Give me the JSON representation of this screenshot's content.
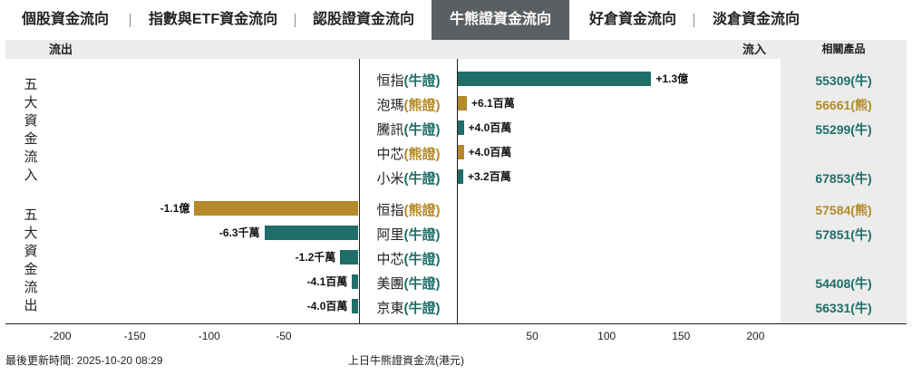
{
  "tabs": [
    {
      "label": "個股資金流向",
      "active": false
    },
    {
      "label": "指數與ETF資金流向",
      "active": false
    },
    {
      "label": "認股證資金流向",
      "active": false
    },
    {
      "label": "牛熊證資金流向",
      "active": true
    },
    {
      "label": "好倉資金流向",
      "active": false
    },
    {
      "label": "淡倉資金流向",
      "active": false
    }
  ],
  "header": {
    "outflow": "流出",
    "inflow": "流入",
    "related": "相關產品"
  },
  "groups": {
    "inflow": "五大資金流入",
    "outflow": "五大資金流出"
  },
  "colors": {
    "bull": "#1f6e69",
    "bear": "#b48a2a"
  },
  "chart_data": {
    "type": "bar",
    "orientation": "horizontal",
    "xlabel": "上日牛熊證資金流(港元)",
    "xticks": [
      -200,
      -150,
      -100,
      -50,
      50,
      100,
      150,
      200
    ],
    "units": "百萬港元",
    "rows": [
      {
        "underlying": "恒指",
        "kind": "(牛證)",
        "bull": true,
        "value": 130,
        "label": "+1.3億",
        "product": "55309(牛)",
        "group": "inflow"
      },
      {
        "underlying": "泡瑪",
        "kind": "(熊證)",
        "bull": false,
        "value": 6.1,
        "label": "+6.1百萬",
        "product": "56661(熊)",
        "group": "inflow"
      },
      {
        "underlying": "騰訊",
        "kind": "(牛證)",
        "bull": true,
        "value": 4.0,
        "label": "+4.0百萬",
        "product": "55299(牛)",
        "group": "inflow"
      },
      {
        "underlying": "中芯",
        "kind": "(熊證)",
        "bull": false,
        "value": 4.0,
        "label": "+4.0百萬",
        "product": "",
        "group": "inflow"
      },
      {
        "underlying": "小米",
        "kind": "(牛證)",
        "bull": true,
        "value": 3.2,
        "label": "+3.2百萬",
        "product": "67853(牛)",
        "group": "inflow"
      },
      {
        "underlying": "恒指",
        "kind": "(熊證)",
        "bull": false,
        "value": -110,
        "label": "-1.1億",
        "product": "57584(熊)",
        "group": "outflow"
      },
      {
        "underlying": "阿里",
        "kind": "(牛證)",
        "bull": true,
        "value": -63,
        "label": "-6.3千萬",
        "product": "57851(牛)",
        "group": "outflow"
      },
      {
        "underlying": "中芯",
        "kind": "(牛證)",
        "bull": true,
        "value": -12,
        "label": "-1.2千萬",
        "product": "",
        "group": "outflow"
      },
      {
        "underlying": "美團",
        "kind": "(牛證)",
        "bull": true,
        "value": -4.1,
        "label": "-4.1百萬",
        "product": "54408(牛)",
        "group": "outflow"
      },
      {
        "underlying": "京東",
        "kind": "(牛證)",
        "bull": true,
        "value": -4.0,
        "label": "-4.0百萬",
        "product": "56331(牛)",
        "group": "outflow"
      }
    ]
  },
  "footer": {
    "updated": "最後更新時間: 2025-10-20 08:29",
    "caption": "上日牛熊證資金流(港元)"
  }
}
